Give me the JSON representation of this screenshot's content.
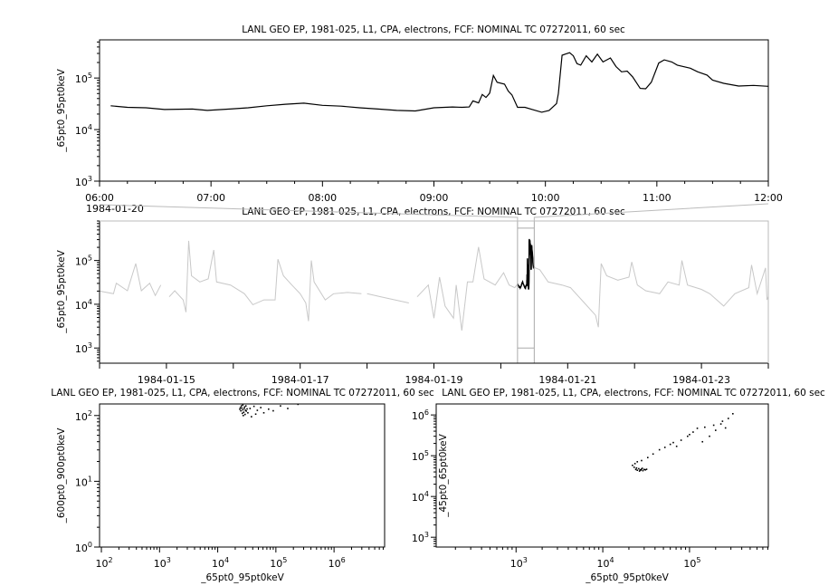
{
  "chart_data": [
    {
      "type": "line",
      "title": "LANL GEO EP, 1981-025, L1, CPA, electrons, FCF: NOMINAL TC 07272011, 60 sec",
      "xlabel": "",
      "ylabel": "_65pt0_95pt0keV",
      "yscale": "log",
      "ylim": [
        1000,
        550000
      ],
      "xlim": [
        "06:00",
        "12:00"
      ],
      "xticks": [
        "06:00",
        "07:00",
        "08:00",
        "09:00",
        "10:00",
        "11:00",
        "12:00"
      ],
      "date_label": "1984-01-20",
      "ytick_exponents": [
        "3",
        "4",
        "5"
      ],
      "line_color": "#000000",
      "grid": false,
      "series": [
        {
          "x": [
            "06:06",
            "06:15",
            "06:25",
            "06:35",
            "06:50",
            "06:58",
            "07:10",
            "07:20",
            "07:30",
            "07:40",
            "07:50",
            "08:00",
            "08:10",
            "08:20",
            "08:30",
            "08:40",
            "08:50",
            "09:00",
            "09:10",
            "09:15",
            "09:19",
            "09:21",
            "09:24",
            "09:26",
            "09:28",
            "09:30",
            "09:32",
            "09:34",
            "09:38",
            "09:40",
            "09:42",
            "09:45",
            "09:49",
            "09:53",
            "09:58",
            "10:02",
            "10:06",
            "10:07",
            "10:09",
            "10:11",
            "10:13",
            "10:15",
            "10:17",
            "10:19",
            "10:22",
            "10:25",
            "10:28",
            "10:31",
            "10:35",
            "10:38",
            "10:41",
            "10:44",
            "10:47",
            "10:51",
            "10:54",
            "10:57",
            "11:01",
            "11:04",
            "11:08",
            "11:11",
            "11:18",
            "11:22",
            "11:27",
            "11:30",
            "11:36",
            "11:44",
            "11:52",
            "12:00"
          ],
          "y": [
            29000,
            27000,
            26500,
            24500,
            25000,
            23500,
            25000,
            26500,
            29000,
            31000,
            32500,
            29500,
            28500,
            26500,
            25000,
            23500,
            23000,
            26500,
            27500,
            27000,
            27500,
            36000,
            33000,
            48000,
            42000,
            51000,
            112000,
            83000,
            76000,
            56000,
            47000,
            27000,
            27000,
            24500,
            21700,
            23500,
            32000,
            50000,
            276000,
            293000,
            310000,
            270000,
            190000,
            178000,
            270000,
            205000,
            290000,
            205000,
            245000,
            167000,
            132000,
            136000,
            105000,
            63000,
            62000,
            83000,
            195000,
            225000,
            205000,
            178000,
            155000,
            132000,
            114000,
            91000,
            79000,
            70000,
            72000,
            69000
          ]
        }
      ]
    },
    {
      "type": "line",
      "title": "LANL GEO EP, 1981-025, L1, CPA, electrons, FCF: NOMINAL TC 07272011, 60 sec",
      "xlabel": "",
      "ylabel": "_65pt0_95pt0keV",
      "yscale": "log",
      "ylim": [
        450,
        800000
      ],
      "xlim": [
        "1984-01-14 00:00",
        "1984-01-24 00:00"
      ],
      "xticks": [
        "1984-01-15",
        "1984-01-17",
        "1984-01-19",
        "1984-01-21",
        "1984-01-23"
      ],
      "ytick_exponents": [
        "3",
        "4",
        "5"
      ],
      "context_color": "#c8c8c8",
      "highlight_color": "#000000",
      "highlight_range": [
        "1984-01-20 06:00",
        "1984-01-20 12:00"
      ],
      "grid": false,
      "series": [
        {
          "x": [
            "1984-01-14 00:00",
            "1984-01-14 05:00",
            "1984-01-14 06:00",
            "1984-01-14 10:00",
            "1984-01-14 13:00",
            "1984-01-14 15:00",
            "1984-01-14 18:00",
            "1984-01-14 20:00",
            "1984-01-14 22:00",
            null,
            "1984-01-15 01:00",
            "1984-01-15 03:00",
            "1984-01-15 06:00",
            "1984-01-15 07:00",
            "1984-01-15 08:00",
            "1984-01-15 09:00",
            "1984-01-15 12:00",
            "1984-01-15 15:00",
            "1984-01-15 17:00",
            "1984-01-15 18:00",
            "1984-01-15 23:00",
            "1984-01-16 04:00",
            "1984-01-16 07:00",
            "1984-01-16 11:00",
            "1984-01-16 15:00",
            "1984-01-16 16:00",
            "1984-01-16 18:00",
            "1984-01-16 21:00",
            "1984-01-17 00:00",
            "1984-01-17 02:00",
            "1984-01-17 03:00",
            "1984-01-17 04:00",
            "1984-01-17 05:00",
            "1984-01-17 09:00",
            "1984-01-17 12:00",
            "1984-01-17 17:00",
            "1984-01-17 22:00",
            null,
            "1984-01-18 00:00",
            "1984-01-18 05:00",
            "1984-01-18 10:00",
            "1984-01-18 15:00",
            null,
            "1984-01-18 18:00",
            "1984-01-18 22:00",
            "1984-01-19 00:00",
            "1984-01-19 02:00",
            "1984-01-19 04:00",
            "1984-01-19 07:00",
            "1984-01-19 08:00",
            "1984-01-19 10:00",
            "1984-01-19 12:00",
            "1984-01-19 14:00",
            "1984-01-19 16:00",
            "1984-01-19 18:00",
            "1984-01-19 22:00",
            "1984-01-20 01:00",
            "1984-01-20 03:00",
            "1984-01-20 05:00",
            "1984-01-20 06:00",
            null,
            "1984-01-20 12:00",
            "1984-01-20 14:00",
            "1984-01-20 17:00",
            "1984-01-20 22:00",
            "1984-01-21 01:00",
            "1984-01-21 06:00",
            "1984-01-21 10:00",
            "1984-01-21 11:00",
            "1984-01-21 12:00",
            "1984-01-21 14:00",
            "1984-01-21 18:00",
            "1984-01-21 22:00",
            "1984-01-21 23:00",
            "1984-01-22 01:00",
            "1984-01-22 04:00",
            "1984-01-22 09:00",
            "1984-01-22 12:00",
            "1984-01-22 16:00",
            "1984-01-22 17:00",
            "1984-01-22 19:00",
            "1984-01-23 00:00",
            "1984-01-23 03:00",
            "1984-01-23 08:00",
            "1984-01-23 12:00",
            "1984-01-23 17:00",
            "1984-01-23 18:00",
            "1984-01-23 20:00",
            "1984-01-23 23:00",
            "1984-01-23 23:30",
            "1984-01-24 00:00"
          ],
          "y": [
            20000,
            17400,
            30200,
            20400,
            85000,
            20400,
            30200,
            15800,
            27500,
            null,
            14800,
            20400,
            12600,
            6600,
            282000,
            44700,
            32400,
            38000,
            174000,
            32400,
            27500,
            17400,
            9800,
            12600,
            12600,
            107000,
            44700,
            27500,
            17400,
            10700,
            4100,
            100000,
            32400,
            12600,
            17400,
            18600,
            17400,
            null,
            17400,
            14800,
            12600,
            10700,
            null,
            14800,
            27500,
            4800,
            41700,
            9100,
            4800,
            27500,
            2500,
            32400,
            32400,
            204000,
            38000,
            27500,
            52500,
            27500,
            24000,
            29000,
            null,
            69000,
            61700,
            32400,
            27500,
            24000,
            10700,
            5600,
            3000,
            85000,
            44700,
            35500,
            41700,
            93000,
            27500,
            20400,
            17400,
            32400,
            27500,
            100000,
            27500,
            21900,
            17400,
            9100,
            17400,
            24000,
            79000,
            17400,
            67600,
            12600,
            15000
          ]
        }
      ]
    },
    {
      "type": "scatter",
      "title": "LANL GEO EP, 1981-025, L1, CPA, electrons, FCF: NOMINAL TC 07272011, 60 sec",
      "xlabel": "_65pt0_95pt0keV",
      "ylabel": "_600pt0_900pt0keV",
      "xscale": "log",
      "yscale": "log",
      "xlim": [
        93,
        7400000
      ],
      "ylim": [
        1,
        150
      ],
      "xtick_exponents": [
        "2",
        "3",
        "4",
        "5",
        "6"
      ],
      "ytick_exponents": [
        "0",
        "1",
        "2"
      ],
      "point_color": "#000000",
      "points": [
        [
          24000,
          125
        ],
        [
          25000,
          118
        ],
        [
          26000,
          130
        ],
        [
          27000,
          122
        ],
        [
          28000,
          112
        ],
        [
          29000,
          135
        ],
        [
          30000,
          120
        ],
        [
          26500,
          108
        ],
        [
          28500,
          128
        ],
        [
          31000,
          117
        ],
        [
          25500,
          140
        ],
        [
          27500,
          100
        ],
        [
          29500,
          104
        ],
        [
          32000,
          126
        ],
        [
          24500,
          132
        ],
        [
          30500,
          140
        ],
        [
          27000,
          145
        ],
        [
          33000,
          110
        ],
        [
          36000,
          128
        ],
        [
          42000,
          138
        ],
        [
          48000,
          120
        ],
        [
          55000,
          132
        ],
        [
          62000,
          110
        ],
        [
          75000,
          125
        ],
        [
          90000,
          118
        ],
        [
          120000,
          140
        ],
        [
          160000,
          128
        ],
        [
          240000,
          148
        ],
        [
          38000,
          96
        ],
        [
          45000,
          105
        ]
      ]
    },
    {
      "type": "scatter",
      "title": "LANL GEO EP, 1981-025, L1, CPA, electrons, FCF: NOMINAL TC 07272011, 60 sec",
      "xlabel": "_65pt0_95pt0keV",
      "ylabel": "_45pt0_65pt0keV",
      "xscale": "log",
      "yscale": "log",
      "xlim": [
        120,
        810000
      ],
      "ylim": [
        575,
        1860000
      ],
      "xtick_exponents": [
        "3",
        "4",
        "5"
      ],
      "ytick_exponents": [
        "3",
        "4",
        "5",
        "6"
      ],
      "point_color": "#000000",
      "points": [
        [
          24000,
          46000
        ],
        [
          25000,
          44000
        ],
        [
          26000,
          48000
        ],
        [
          27000,
          45000
        ],
        [
          28000,
          47000
        ],
        [
          29000,
          43000
        ],
        [
          30000,
          46000
        ],
        [
          31000,
          45000
        ],
        [
          26500,
          42000
        ],
        [
          28500,
          49000
        ],
        [
          24500,
          50000
        ],
        [
          27500,
          44500
        ],
        [
          32000,
          46500
        ],
        [
          23000,
          52000
        ],
        [
          22000,
          58000
        ],
        [
          23500,
          64000
        ],
        [
          25000,
          71000
        ],
        [
          28000,
          76000
        ],
        [
          33000,
          90000
        ],
        [
          38000,
          110000
        ],
        [
          45000,
          140000
        ],
        [
          52000,
          160000
        ],
        [
          60000,
          190000
        ],
        [
          71000,
          170000
        ],
        [
          80000,
          240000
        ],
        [
          95000,
          300000
        ],
        [
          110000,
          380000
        ],
        [
          123000,
          470000
        ],
        [
          150000,
          500000
        ],
        [
          190000,
          560000
        ],
        [
          240000,
          700000
        ],
        [
          280000,
          820000
        ],
        [
          316000,
          1070000
        ],
        [
          230000,
          600000
        ],
        [
          200000,
          420000
        ],
        [
          141000,
          220000
        ],
        [
          170000,
          300000
        ],
        [
          260000,
          480000
        ],
        [
          100000,
          330000
        ],
        [
          65000,
          210000
        ]
      ]
    }
  ]
}
